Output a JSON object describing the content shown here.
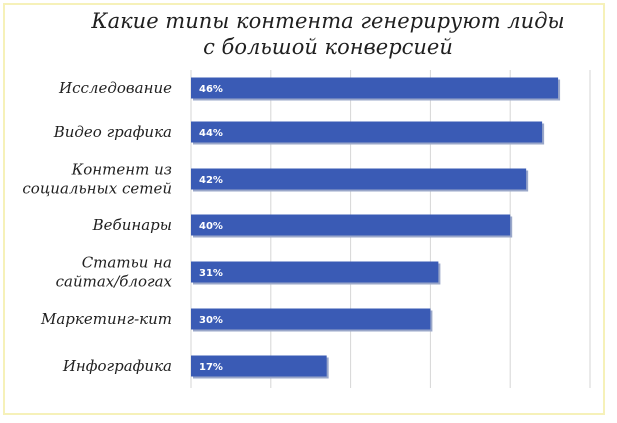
{
  "chart_data": {
    "type": "bar",
    "orientation": "horizontal",
    "title": [
      "Какие типы контента генерируют лиды",
      "с большой конверсией"
    ],
    "categories": [
      [
        "Исследование"
      ],
      [
        "Видео графика"
      ],
      [
        "Контент из",
        "социальных сетей"
      ],
      [
        "Вебинары"
      ],
      [
        "Статьи на",
        "сайтах/блогах"
      ],
      [
        "Маркетинг-кит"
      ],
      [
        "Инфографика"
      ]
    ],
    "values": [
      46,
      44,
      42,
      40,
      31,
      30,
      17
    ],
    "data_labels": [
      "46%",
      "44%",
      "42%",
      "40%",
      "31%",
      "30%",
      "17%"
    ],
    "xlim": [
      0,
      50
    ],
    "grid": true,
    "xlabel": "",
    "ylabel": "",
    "colors": {
      "bar": "#3a5bb5",
      "bar_shadow": "#9aa7c9",
      "grid": "#d6d6d6",
      "border": "#f6f1b9"
    }
  }
}
